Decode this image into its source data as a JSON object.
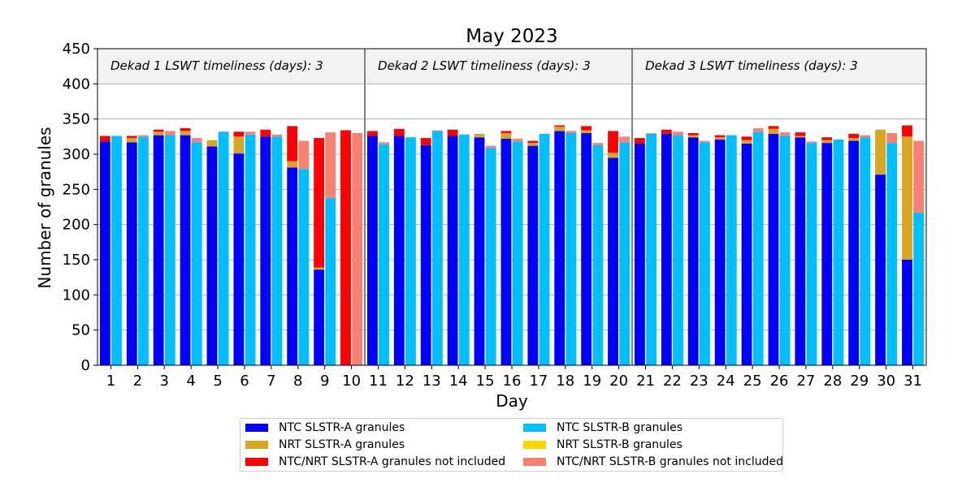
{
  "chart_data": {
    "type": "bar",
    "title": "May 2023",
    "xlabel": "Day",
    "ylabel": "Number of granules",
    "ylim": [
      0,
      450
    ],
    "yticks": [
      0,
      50,
      100,
      150,
      200,
      250,
      300,
      350,
      400,
      450
    ],
    "categories": [
      "1",
      "2",
      "3",
      "4",
      "5",
      "6",
      "7",
      "8",
      "9",
      "10",
      "11",
      "12",
      "13",
      "14",
      "15",
      "16",
      "17",
      "18",
      "19",
      "20",
      "21",
      "22",
      "23",
      "24",
      "25",
      "26",
      "27",
      "28",
      "29",
      "30",
      "31"
    ],
    "grid": true,
    "legend_position": "bottom",
    "annotations": [
      "Dekad 1 LSWT timeliness (days): 3",
      "Dekad 2 LSWT timeliness (days): 3",
      "Dekad 3 LSWT timeliness (days): 3"
    ],
    "colors": {
      "ntc_a": "#0000ff",
      "nrt_a": "#daa520",
      "notinc_a": "#ff0000",
      "ntc_b": "#00bfff",
      "nrt_b": "#ffd700",
      "notinc_b": "#fa8072",
      "band": "#f2f2f2",
      "grid": "#b0b0b0",
      "divider": "#808080"
    },
    "series": [
      {
        "name": "NTC SLSTR-A granules",
        "stack": "A",
        "color_key": "ntc_a",
        "values": [
          318,
          317,
          327,
          327,
          311,
          301,
          325,
          281,
          136,
          0,
          326,
          326,
          313,
          326,
          324,
          322,
          312,
          333,
          330,
          295,
          315,
          329,
          324,
          321,
          315,
          329,
          324,
          316,
          319,
          271,
          150
        ]
      },
      {
        "name": "NRT SLSTR-A granules",
        "stack": "A",
        "color_key": "nrt_a",
        "values": [
          0,
          6,
          5,
          6,
          9,
          24,
          0,
          9,
          3,
          0,
          0,
          0,
          0,
          0,
          5,
          8,
          4,
          6,
          4,
          7,
          0,
          0,
          3,
          3,
          5,
          7,
          2,
          4,
          4,
          64,
          175
        ]
      },
      {
        "name": "NTC/NRT SLSTR-A granules not included",
        "stack": "A",
        "color_key": "notinc_a",
        "values": [
          8,
          3,
          3,
          4,
          0,
          7,
          10,
          50,
          184,
          334,
          7,
          10,
          10,
          9,
          0,
          3,
          3,
          2,
          6,
          31,
          8,
          6,
          3,
          3,
          5,
          4,
          5,
          4,
          6,
          0,
          16
        ]
      },
      {
        "name": "NTC SLSTR-B granules",
        "stack": "B",
        "color_key": "ntc_b",
        "values": [
          326,
          325,
          327,
          317,
          332,
          328,
          325,
          279,
          238,
          0,
          314,
          324,
          333,
          328,
          309,
          318,
          329,
          330,
          313,
          317,
          329,
          327,
          317,
          327,
          332,
          326,
          316,
          321,
          324,
          316,
          217
        ]
      },
      {
        "name": "NRT SLSTR-B granules",
        "stack": "B",
        "color_key": "nrt_b",
        "values": [
          0,
          0,
          0,
          0,
          0,
          0,
          0,
          0,
          0,
          0,
          0,
          0,
          0,
          0,
          0,
          0,
          0,
          0,
          0,
          0,
          0,
          0,
          0,
          0,
          0,
          0,
          0,
          0,
          0,
          0,
          0
        ]
      },
      {
        "name": "NTC/NRT SLSTR-B granules not included",
        "stack": "B",
        "color_key": "notinc_b",
        "values": [
          0,
          2,
          6,
          6,
          0,
          4,
          3,
          40,
          93,
          330,
          3,
          0,
          1,
          0,
          3,
          4,
          0,
          3,
          3,
          8,
          1,
          5,
          2,
          0,
          5,
          5,
          2,
          0,
          3,
          14,
          102
        ]
      }
    ]
  }
}
